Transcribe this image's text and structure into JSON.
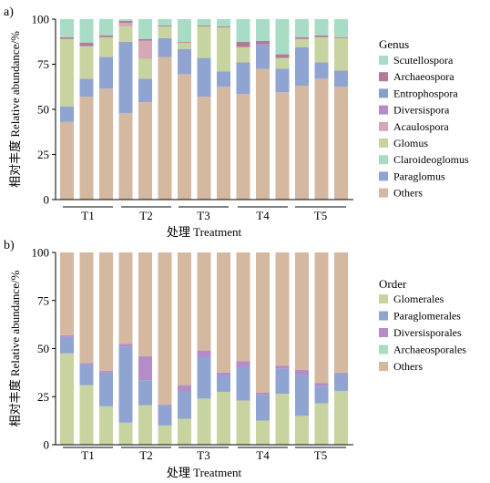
{
  "chart_data": [
    {
      "type": "bar",
      "stacked": true,
      "panel_label": "a)",
      "ylabel": "相对丰度 Relative abundance/%",
      "xlabel": "处理 Treatment",
      "ylim": [
        0,
        100
      ],
      "yticks": [
        "0",
        "25",
        "50",
        "75",
        "100"
      ],
      "groups": [
        "T1",
        "T2",
        "T3",
        "T4",
        "T5"
      ],
      "bars_per_group": 3,
      "legend_title": "Genus",
      "legend_placement": "right",
      "series": [
        {
          "name": "Others",
          "color": "#d4b8a0",
          "values": [
            43,
            57,
            61.5,
            48,
            54,
            79,
            69.5,
            57,
            62.5,
            58.5,
            72.5,
            59.5,
            63,
            67,
            62.5
          ]
        },
        {
          "name": "Paraglomus",
          "color": "#8fa4d1",
          "values": [
            8.5,
            10,
            17.5,
            39.5,
            13,
            10.5,
            14,
            21.5,
            8.5,
            17.5,
            13.5,
            13,
            21.5,
            9,
            9
          ]
        },
        {
          "name": "Claroideoglomus",
          "color": "#a8dcc4",
          "values": [
            0,
            0,
            0,
            0,
            0,
            0,
            0,
            0,
            0,
            0,
            0,
            0,
            0,
            0,
            0
          ]
        },
        {
          "name": "Glomus",
          "color": "#c8d4a0",
          "values": [
            37.5,
            18,
            11,
            8.5,
            11,
            6.5,
            3.5,
            17.5,
            24.5,
            8.5,
            0,
            6,
            4.5,
            14,
            18
          ]
        },
        {
          "name": "Acaulospora",
          "color": "#d4a8b4",
          "values": [
            0,
            0,
            0,
            2,
            10,
            0,
            0,
            0,
            0,
            0,
            0,
            0,
            0,
            0,
            0
          ]
        },
        {
          "name": "Diversispora",
          "color": "#b48cc8",
          "values": [
            0,
            0,
            0,
            0,
            0,
            0,
            0,
            0,
            0,
            0,
            0,
            0,
            0,
            0,
            0
          ]
        },
        {
          "name": "Entrophospora",
          "color": "#8c9ccc",
          "values": [
            0,
            0,
            0,
            0,
            0,
            0,
            0,
            0,
            0,
            0,
            0,
            0,
            0,
            0,
            0
          ]
        },
        {
          "name": "Archaeospora",
          "color": "#b07a98",
          "values": [
            1,
            2,
            1,
            1,
            1,
            0.5,
            0.5,
            0.5,
            0.5,
            3,
            2,
            2,
            1,
            1,
            0.5
          ]
        },
        {
          "name": "Scutellospora",
          "color": "#a8dcc4",
          "values": [
            10,
            13,
            9,
            1,
            11,
            3.5,
            12.5,
            3.5,
            4,
            12.5,
            12,
            19.5,
            10,
            9,
            10
          ]
        }
      ]
    },
    {
      "type": "bar",
      "stacked": true,
      "panel_label": "b)",
      "ylabel": "相对丰度 Relative abundance/%",
      "xlabel": "处理 Treatment",
      "ylim": [
        0,
        100
      ],
      "yticks": [
        "0",
        "25",
        "50",
        "75",
        "100"
      ],
      "groups": [
        "T1",
        "T2",
        "T3",
        "T4",
        "T5"
      ],
      "bars_per_group": 3,
      "legend_title": "Order",
      "legend_placement": "right",
      "series": [
        {
          "name": "Glomerales",
          "color": "#c8d4a0",
          "values": [
            47.5,
            31,
            20,
            11.5,
            20.5,
            10,
            13.5,
            24,
            27.5,
            23,
            12.5,
            26.5,
            15,
            21.5,
            28
          ]
        },
        {
          "name": "Paraglomerales",
          "color": "#8fa4d1",
          "values": [
            8.5,
            10.5,
            17.5,
            39.5,
            13,
            10.5,
            14,
            21.5,
            8.5,
            17.5,
            13.5,
            13,
            21.5,
            9,
            9
          ]
        },
        {
          "name": "Diversisporales",
          "color": "#b48cc8",
          "values": [
            1,
            1,
            1,
            1.5,
            12.5,
            0.5,
            3.5,
            3.5,
            1.5,
            3,
            1,
            1.5,
            2.5,
            1.5,
            0.5
          ]
        },
        {
          "name": "Archaeosporales",
          "color": "#a8dcc4",
          "values": [
            0,
            0,
            0,
            0,
            0,
            0,
            0,
            0,
            0,
            0,
            0,
            0,
            0,
            0,
            0
          ]
        },
        {
          "name": "Others",
          "color": "#d4b8a0",
          "values": [
            43,
            57.5,
            61.5,
            47.5,
            54,
            79,
            69,
            51,
            62.5,
            56.5,
            73,
            59,
            61,
            68,
            62.5
          ]
        }
      ]
    }
  ]
}
